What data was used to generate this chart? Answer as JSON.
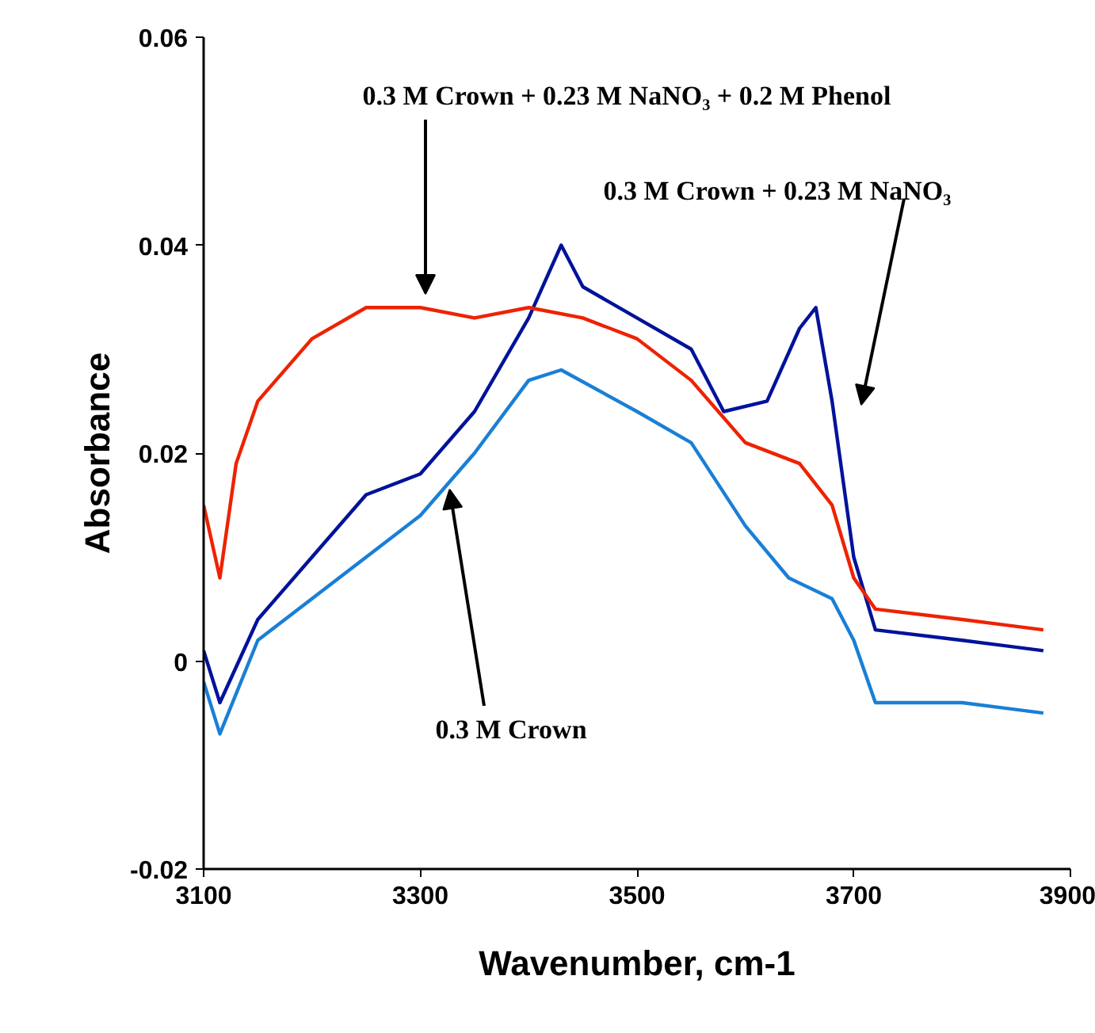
{
  "chart_data": {
    "type": "line",
    "xlabel": "Wavenumber, cm-1",
    "ylabel": "Absorbance",
    "xlim": [
      3100,
      3900
    ],
    "ylim": [
      -0.02,
      0.06
    ],
    "xticks": [
      3100,
      3300,
      3500,
      3700,
      3900
    ],
    "yticks": [
      {
        "value": -0.02,
        "label": "-0.02"
      },
      {
        "value": 0,
        "label": "0"
      },
      {
        "value": 0.02,
        "label": "0.02"
      },
      {
        "value": 0.04,
        "label": "0.04"
      },
      {
        "value": 0.06,
        "label": "0.06"
      }
    ],
    "grid": false,
    "line_style": "solid",
    "marker": "none",
    "series": [
      {
        "color": "#1a7fd6",
        "x": [
          3100,
          3115,
          3150,
          3200,
          3250,
          3300,
          3350,
          3400,
          3430,
          3500,
          3550,
          3600,
          3640,
          3680,
          3700,
          3720,
          3800,
          3875
        ],
        "values": [
          -0.002,
          -0.007,
          0.002,
          0.006,
          0.01,
          0.014,
          0.02,
          0.027,
          0.028,
          0.024,
          0.021,
          0.013,
          0.008,
          0.006,
          0.002,
          -0.004,
          -0.004,
          -0.005
        ]
      },
      {
        "color": "#00129a",
        "x": [
          3100,
          3115,
          3150,
          3200,
          3250,
          3300,
          3350,
          3400,
          3430,
          3450,
          3500,
          3550,
          3580,
          3620,
          3650,
          3665,
          3680,
          3700,
          3720,
          3800,
          3875
        ],
        "values": [
          0.001,
          -0.004,
          0.004,
          0.01,
          0.016,
          0.018,
          0.024,
          0.033,
          0.04,
          0.036,
          0.033,
          0.03,
          0.024,
          0.025,
          0.032,
          0.034,
          0.025,
          0.01,
          0.003,
          0.002,
          0.001
        ]
      },
      {
        "color": "#ee2200",
        "x": [
          3100,
          3115,
          3130,
          3150,
          3200,
          3250,
          3300,
          3350,
          3400,
          3450,
          3500,
          3550,
          3600,
          3650,
          3680,
          3700,
          3720,
          3800,
          3875
        ],
        "values": [
          0.015,
          0.008,
          0.019,
          0.025,
          0.031,
          0.034,
          0.034,
          0.033,
          0.034,
          0.033,
          0.031,
          0.027,
          0.021,
          0.019,
          0.015,
          0.008,
          0.005,
          0.004,
          0.003
        ]
      }
    ],
    "annotations": [
      "0.3 M Crown + 0.23 M NaNO₃ + 0.2 M Phenol",
      "0.3 M Crown + 0.23 M NaNO₃",
      {
        "text": "0.3 M Crown",
        "x": 3327,
        "y": 0.0165
      }
    ]
  }
}
